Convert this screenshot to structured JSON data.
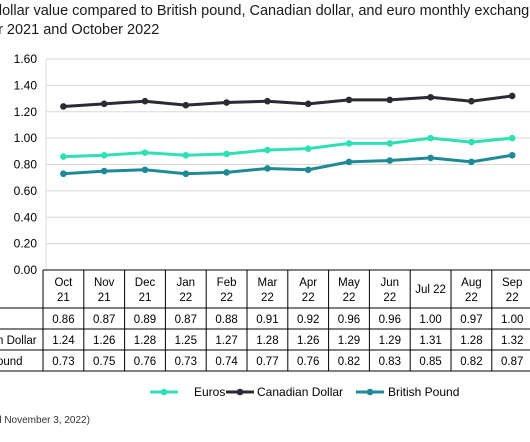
{
  "title": {
    "line1": "dollar value compared to British pound, Canadian dollar, and euro monthly exchange",
    "line2": "er 2021 and October 2022"
  },
  "source": "d November 3, 2022)",
  "colors": {
    "euros": "#2fe0b4",
    "canadian": "#2b2b33",
    "british": "#1e8a96",
    "grid": "#d9d9d9"
  },
  "chart_data": {
    "type": "line",
    "ylim": [
      0,
      1.6
    ],
    "yticks": [
      "0.00",
      "0.20",
      "0.40",
      "0.60",
      "0.80",
      "1.00",
      "1.20",
      "1.40",
      "1.60"
    ],
    "categories": [
      [
        "Oct",
        "21"
      ],
      [
        "Nov",
        "21"
      ],
      [
        "Dec",
        "21"
      ],
      [
        "Jan",
        "22"
      ],
      [
        "Feb",
        "22"
      ],
      [
        "Mar",
        "22"
      ],
      [
        "Apr",
        "22"
      ],
      [
        "May",
        "22"
      ],
      [
        "Jun",
        "22"
      ],
      [
        "Jul 22"
      ],
      [
        "Aug",
        "22"
      ],
      [
        "Sep",
        "22"
      ]
    ],
    "legend_position": "bottom",
    "series": [
      {
        "name": "Euros",
        "row_label": "",
        "color": "#2fe0b4",
        "values": [
          0.86,
          0.87,
          0.89,
          0.87,
          0.88,
          0.91,
          0.92,
          0.96,
          0.96,
          1.0,
          0.97,
          1.0
        ],
        "labels": [
          "0.86",
          "0.87",
          "0.89",
          "0.87",
          "0.88",
          "0.91",
          "0.92",
          "0.96",
          "0.96",
          "1.00",
          "0.97",
          "1.00"
        ]
      },
      {
        "name": "Canadian Dollar",
        "row_label": "n Dollar",
        "color": "#2b2b33",
        "values": [
          1.24,
          1.26,
          1.28,
          1.25,
          1.27,
          1.28,
          1.26,
          1.29,
          1.29,
          1.31,
          1.28,
          1.32
        ],
        "labels": [
          "1.24",
          "1.26",
          "1.28",
          "1.25",
          "1.27",
          "1.28",
          "1.26",
          "1.29",
          "1.29",
          "1.31",
          "1.28",
          "1.32"
        ]
      },
      {
        "name": "British Pound",
        "row_label": "ound",
        "color": "#1e8a96",
        "values": [
          0.73,
          0.75,
          0.76,
          0.73,
          0.74,
          0.77,
          0.76,
          0.82,
          0.83,
          0.85,
          0.82,
          0.87
        ],
        "labels": [
          "0.73",
          "0.75",
          "0.76",
          "0.73",
          "0.74",
          "0.77",
          "0.76",
          "0.82",
          "0.83",
          "0.85",
          "0.82",
          "0.87"
        ]
      }
    ]
  }
}
